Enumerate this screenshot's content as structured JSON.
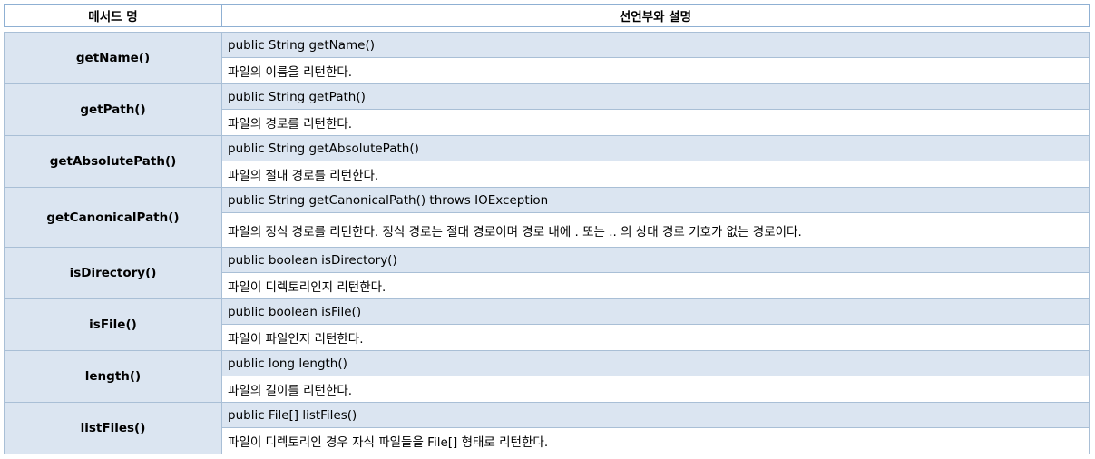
{
  "headers": {
    "method": "메서드 명",
    "declaration": "선언부와 설명"
  },
  "rows": [
    {
      "method": "getName()",
      "declaration": "public String getName()",
      "description": "파일의 이름을 리턴한다."
    },
    {
      "method": "getPath()",
      "declaration": "public String getPath()",
      "description": "파일의 경로를 리턴한다."
    },
    {
      "method": "getAbsolutePath()",
      "declaration": "public String getAbsolutePath()",
      "description": "파일의 절대 경로를 리턴한다."
    },
    {
      "method": "getCanonicalPath()",
      "declaration": "public String getCanonicalPath() throws IOException",
      "description": "파일의 정식 경로를 리턴한다. 정식 경로는 절대 경로이며 경로 내에 . 또는  .. 의 상대 경로 기호가 없는 경로이다."
    },
    {
      "method": "isDirectory()",
      "declaration": "public boolean isDirectory()",
      "description": "파일이 디렉토리인지 리턴한다."
    },
    {
      "method": "isFile()",
      "declaration": "public boolean isFile()",
      "description": "파일이 파일인지 리턴한다."
    },
    {
      "method": "length()",
      "declaration": "public long length()",
      "description": "파일의 길이를 리턴한다."
    },
    {
      "method": "listFiles()",
      "declaration": "public File[] listFiles()",
      "description": "파일이 디렉토리인 경우 자식 파일들을 File[] 형태로 리턴한다."
    }
  ]
}
